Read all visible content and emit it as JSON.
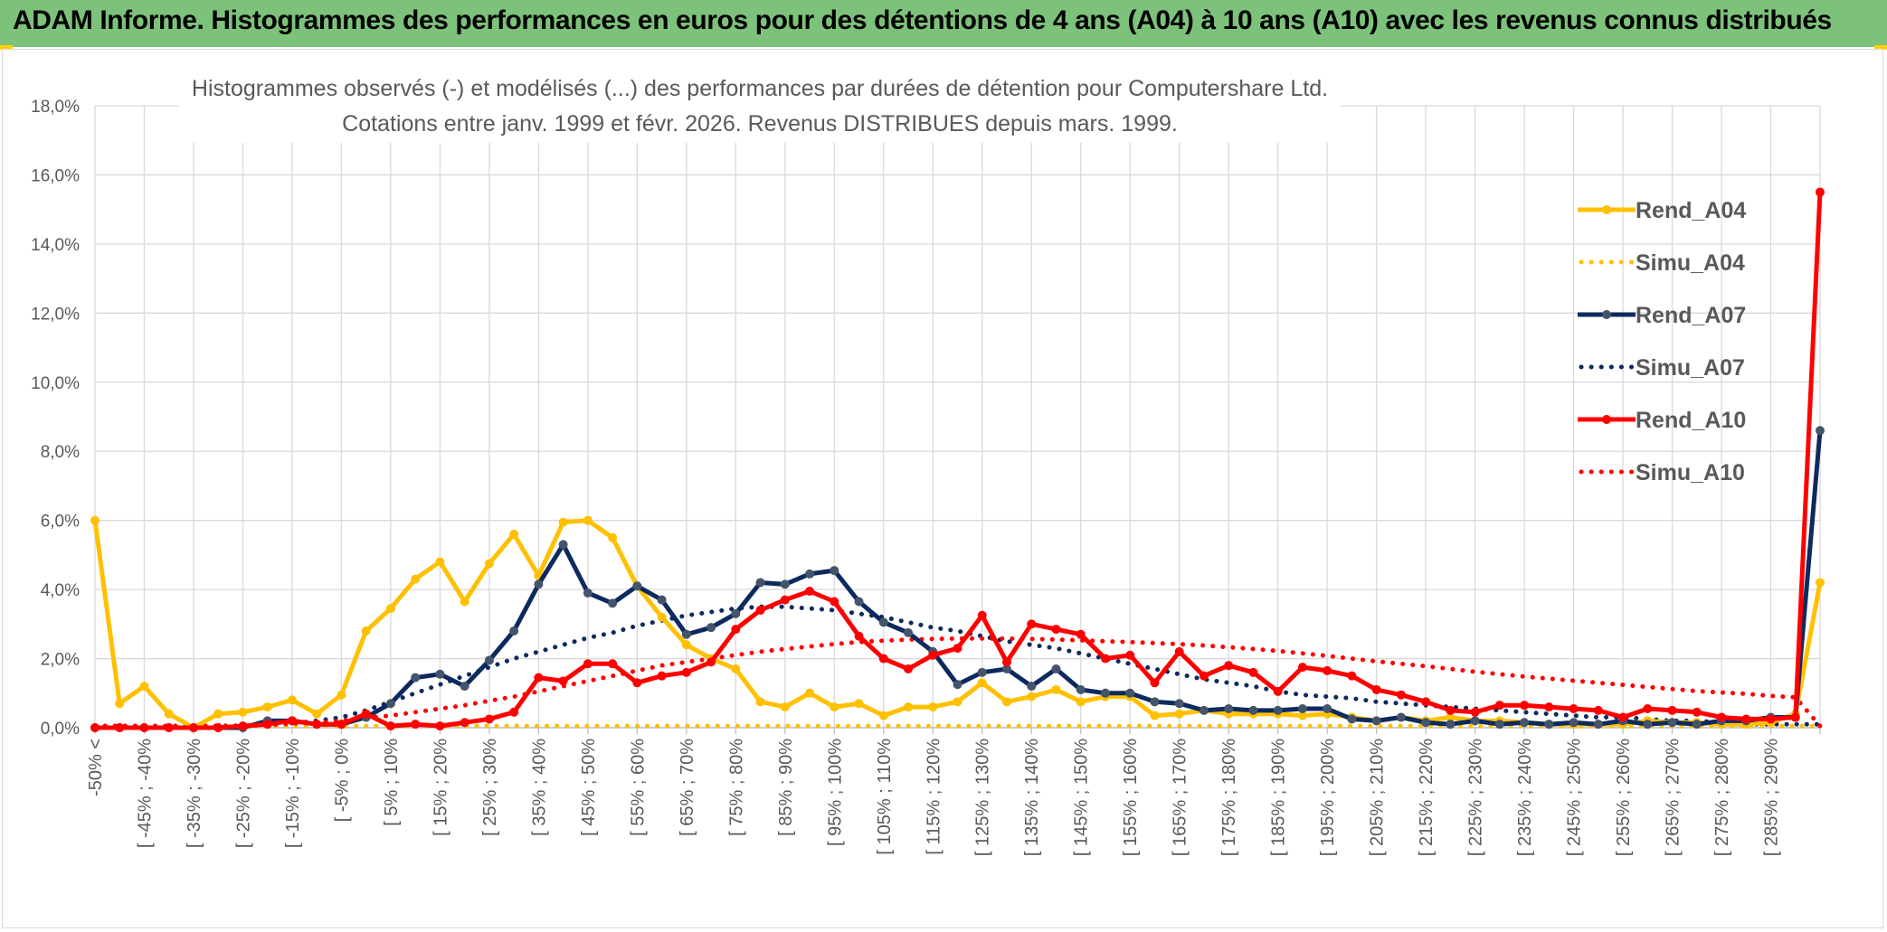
{
  "header": {
    "title": "ADAM Informe. Histogrammes des performances en euros pour des détentions de 4 ans (A04) à 10 ans (A10) avec les revenus connus distribués"
  },
  "chart_data": {
    "type": "line",
    "title": "Histogrammes observés (-) et modélisés (...) des performances par durées de détention pour Computershare Ltd.",
    "subtitle": "Cotations entre janv. 1999 et févr. 2026. Revenus DISTRIBUES depuis mars. 1999.",
    "y_ticks": [
      "0,0%",
      "2,0%",
      "4,0%",
      "6,0%",
      "8,0%",
      "10,0%",
      "12,0%",
      "14,0%",
      "16,0%",
      "18,0%"
    ],
    "ylim": [
      0,
      18
    ],
    "grid": true,
    "legend_position": "right",
    "x_labels": [
      "-50% <",
      "[ -45% ; -40%",
      "[ -35% ; -30%",
      "[ -25% ; -20%",
      "[ -15% ; -10%",
      "[ -5% ; 0%",
      "[ 5% ; 10%",
      "[ 15% ; 20%",
      "[ 25% ; 30%",
      "[ 35% ; 40%",
      "[ 45% ; 50%",
      "[ 55% ; 60%",
      "[ 65% ; 70%",
      "[ 75% ; 80%",
      "[ 85% ; 90%",
      "[ 95% ; 100%",
      "[ 105% ; 110%",
      "[ 115% ; 120%",
      "[ 125% ; 130%",
      "[ 135% ; 140%",
      "[ 145% ; 150%",
      "[ 155% ; 160%",
      "[ 165% ; 170%",
      "[ 175% ; 180%",
      "[ 185% ; 190%",
      "[ 195% ; 200%",
      "[ 205% ; 210%",
      "[ 215% ; 220%",
      "[ 225% ; 230%",
      "[ 235% ; 240%",
      "[ 245% ; 250%",
      "[ 255% ; 260%",
      "[ 265% ; 270%",
      "[ 275% ; 280%",
      "[ 285% ; 290%"
    ],
    "series": [
      {
        "name": "Rend_A04",
        "color": "#ffc000",
        "style": "solid",
        "values": [
          6.0,
          0.7,
          1.2,
          0.4,
          0.0,
          0.4,
          0.45,
          0.6,
          0.8,
          0.4,
          0.95,
          2.8,
          3.45,
          4.3,
          4.8,
          3.65,
          4.75,
          5.6,
          4.4,
          5.95,
          6.0,
          5.5,
          4.1,
          3.2,
          2.4,
          2.0,
          1.7,
          0.75,
          0.6,
          1.0,
          0.6,
          0.7,
          0.35,
          0.6,
          0.6,
          0.75,
          1.3,
          0.75,
          0.9,
          1.1,
          0.75,
          0.9,
          0.9,
          0.35,
          0.4,
          0.5,
          0.4,
          0.4,
          0.4,
          0.35,
          0.4,
          0.3,
          0.2,
          0.3,
          0.2,
          0.3,
          0.2,
          0.2,
          0.15,
          0.1,
          0.1,
          0.1,
          0.1,
          0.2,
          0.15,
          0.15,
          0.1,
          0.1,
          0.15,
          0.4,
          4.2
        ]
      },
      {
        "name": "Simu_A04",
        "color": "#ffc000",
        "style": "dotted",
        "values": [
          0.05,
          0.05,
          0.05,
          0.05,
          0.05,
          0.05,
          0.05,
          0.05,
          0.05,
          0.05,
          0.05,
          0.05,
          0.05,
          0.05,
          0.05,
          0.05,
          0.05,
          0.05,
          0.05,
          0.05,
          0.05,
          0.05,
          0.05,
          0.05,
          0.05,
          0.05,
          0.05,
          0.05,
          0.05,
          0.05,
          0.05,
          0.05,
          0.05,
          0.05,
          0.05,
          0.05,
          0.05,
          0.05,
          0.05,
          0.05,
          0.05,
          0.05,
          0.05,
          0.05,
          0.05,
          0.05,
          0.05,
          0.05,
          0.05,
          0.05,
          0.05,
          0.05,
          0.05,
          0.05,
          0.05,
          0.05,
          0.05,
          0.05,
          0.05,
          0.05,
          0.05,
          0.05,
          0.05,
          0.05,
          0.05,
          0.05,
          0.05,
          0.05,
          0.05,
          0.05,
          0.05
        ]
      },
      {
        "name": "Rend_A07",
        "color": "#0d2a5e",
        "style": "solid",
        "values": [
          0.0,
          0.0,
          0.0,
          0.0,
          0.0,
          0.0,
          0.0,
          0.2,
          0.2,
          0.1,
          0.1,
          0.3,
          0.7,
          1.45,
          1.55,
          1.2,
          1.95,
          2.8,
          4.15,
          5.3,
          3.9,
          3.6,
          4.1,
          3.7,
          2.7,
          2.9,
          3.3,
          4.2,
          4.15,
          4.45,
          4.55,
          3.65,
          3.05,
          2.75,
          2.2,
          1.25,
          1.6,
          1.7,
          1.2,
          1.7,
          1.1,
          1.0,
          1.0,
          0.75,
          0.7,
          0.5,
          0.55,
          0.5,
          0.5,
          0.55,
          0.55,
          0.25,
          0.2,
          0.3,
          0.15,
          0.1,
          0.2,
          0.1,
          0.15,
          0.1,
          0.15,
          0.1,
          0.2,
          0.1,
          0.15,
          0.1,
          0.2,
          0.2,
          0.3,
          0.3,
          8.6
        ]
      },
      {
        "name": "Simu_A07",
        "color": "#0d2a5e",
        "style": "dotted",
        "values": [
          0.05,
          0.05,
          0.05,
          0.05,
          0.05,
          0.05,
          0.06,
          0.08,
          0.12,
          0.2,
          0.3,
          0.5,
          0.75,
          1.0,
          1.25,
          1.5,
          1.75,
          2.0,
          2.2,
          2.4,
          2.6,
          2.75,
          2.95,
          3.1,
          3.25,
          3.35,
          3.45,
          3.5,
          3.5,
          3.45,
          3.4,
          3.3,
          3.2,
          3.05,
          2.9,
          2.8,
          2.65,
          2.5,
          2.4,
          2.3,
          2.15,
          2.0,
          1.85,
          1.7,
          1.55,
          1.4,
          1.3,
          1.2,
          1.05,
          0.95,
          0.9,
          0.85,
          0.75,
          0.7,
          0.65,
          0.6,
          0.55,
          0.5,
          0.45,
          0.4,
          0.35,
          0.3,
          0.3,
          0.25,
          0.2,
          0.2,
          0.15,
          0.1,
          0.1,
          0.1,
          0.1
        ]
      },
      {
        "name": "Rend_A10",
        "color": "#ff0000",
        "style": "solid",
        "values": [
          0.0,
          0.0,
          0.0,
          0.0,
          0.0,
          0.0,
          0.05,
          0.1,
          0.2,
          0.1,
          0.1,
          0.4,
          0.05,
          0.1,
          0.05,
          0.15,
          0.25,
          0.45,
          1.45,
          1.35,
          1.85,
          1.85,
          1.3,
          1.5,
          1.6,
          1.9,
          2.85,
          3.4,
          3.7,
          3.95,
          3.65,
          2.65,
          2.0,
          1.7,
          2.1,
          2.3,
          3.25,
          1.9,
          3.0,
          2.85,
          2.7,
          2.0,
          2.1,
          1.3,
          2.2,
          1.5,
          1.8,
          1.6,
          1.05,
          1.75,
          1.65,
          1.5,
          1.1,
          0.95,
          0.75,
          0.5,
          0.45,
          0.65,
          0.65,
          0.6,
          0.55,
          0.5,
          0.3,
          0.55,
          0.5,
          0.45,
          0.3,
          0.25,
          0.25,
          0.3,
          15.5
        ]
      },
      {
        "name": "Simu_A10",
        "color": "#ff0000",
        "style": "dotted",
        "values": [
          0.05,
          0.05,
          0.05,
          0.05,
          0.05,
          0.05,
          0.06,
          0.08,
          0.12,
          0.15,
          0.2,
          0.28,
          0.35,
          0.45,
          0.55,
          0.65,
          0.78,
          0.9,
          1.05,
          1.2,
          1.35,
          1.5,
          1.65,
          1.8,
          1.9,
          2.0,
          2.1,
          2.2,
          2.28,
          2.35,
          2.42,
          2.48,
          2.52,
          2.55,
          2.57,
          2.58,
          2.58,
          2.58,
          2.57,
          2.55,
          2.53,
          2.5,
          2.48,
          2.45,
          2.42,
          2.38,
          2.33,
          2.28,
          2.22,
          2.15,
          2.08,
          2.0,
          1.92,
          1.85,
          1.78,
          1.7,
          1.62,
          1.55,
          1.48,
          1.42,
          1.36,
          1.3,
          1.24,
          1.18,
          1.12,
          1.06,
          1.02,
          0.98,
          0.92,
          0.88,
          0.05
        ]
      }
    ]
  }
}
